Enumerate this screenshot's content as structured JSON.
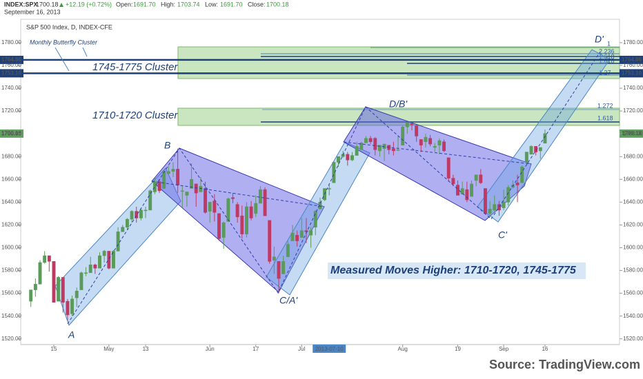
{
  "header": {
    "symbol": "INDEX:SPX",
    "price": "1700.18",
    "change": "+12.19 (+0.72%)",
    "open_label": "Open:",
    "open": "1691.70",
    "high_label": "High:",
    "high": "1703.74",
    "low_label": "Low:",
    "low": "1691.70",
    "close_label": "Close:",
    "close": "1700.18",
    "date": "September 16, 2013"
  },
  "chart_data": {
    "type": "candlestick",
    "title": "S&P 500 Index, D, INDEX-CFE",
    "categories": [
      null,
      null,
      null,
      null,
      null,
      "15",
      null,
      null,
      null,
      null,
      null,
      null,
      null,
      null,
      null,
      null,
      null,
      "May",
      null,
      null,
      null,
      null,
      null,
      null,
      null,
      "13",
      null,
      null,
      null,
      null,
      null,
      null,
      null,
      null,
      null,
      null,
      null,
      null,
      null,
      "Jun",
      null,
      null,
      null,
      null,
      null,
      null,
      null,
      null,
      null,
      "17",
      null,
      null,
      null,
      null,
      null,
      null,
      null,
      null,
      null,
      "Jul",
      null,
      null,
      null,
      null,
      null,
      "2013-07-10",
      null,
      null,
      null,
      null,
      null,
      null,
      null,
      null,
      null,
      null,
      null,
      null,
      null,
      null,
      null,
      "Aug",
      null,
      null,
      null,
      null,
      null,
      null,
      null,
      null,
      null,
      null,
      null,
      "19",
      null,
      null,
      null,
      null,
      null,
      null,
      null,
      null,
      null,
      "Sep",
      null,
      null,
      null,
      null,
      null,
      null,
      null,
      null,
      "16"
    ],
    "candles": [
      [
        1553,
        1563,
        1548,
        1563
      ],
      [
        1563,
        1573,
        1557,
        1568
      ],
      [
        1568,
        1589,
        1568,
        1587
      ],
      [
        1587,
        1597,
        1586,
        1593
      ],
      [
        1593,
        1593,
        1579,
        1588
      ],
      [
        1588,
        1588,
        1552,
        1552
      ],
      [
        1553,
        1575,
        1553,
        1574
      ],
      [
        1574,
        1574,
        1543,
        1552
      ],
      [
        1553,
        1555,
        1536,
        1541
      ],
      [
        1542,
        1558,
        1540,
        1555
      ],
      [
        1556,
        1565,
        1548,
        1562
      ],
      [
        1563,
        1579,
        1563,
        1578
      ],
      [
        1578,
        1583,
        1575,
        1578
      ],
      [
        1578,
        1592,
        1578,
        1585
      ],
      [
        1585,
        1586,
        1577,
        1582
      ],
      [
        1582,
        1596,
        1582,
        1593
      ],
      [
        1593,
        1598,
        1587,
        1597
      ],
      [
        1597,
        1597,
        1581,
        1582
      ],
      [
        1582,
        1598,
        1582,
        1597
      ],
      [
        1597,
        1618,
        1597,
        1614
      ],
      [
        1614,
        1620,
        1614,
        1618
      ],
      [
        1618,
        1626,
        1616,
        1625
      ],
      [
        1625,
        1633,
        1622,
        1632
      ],
      [
        1632,
        1636,
        1622,
        1626
      ],
      [
        1626,
        1634,
        1624,
        1633
      ],
      [
        1633,
        1636,
        1626,
        1633
      ],
      [
        1633,
        1651,
        1633,
        1650
      ],
      [
        1649,
        1661,
        1647,
        1658
      ],
      [
        1658,
        1660,
        1648,
        1650
      ],
      [
        1652,
        1668,
        1652,
        1667
      ],
      [
        1665,
        1672,
        1665,
        1667
      ],
      [
        1667,
        1675,
        1662,
        1669
      ],
      [
        1669,
        1687,
        1648,
        1655
      ],
      [
        1650,
        1654,
        1635,
        1650
      ],
      [
        1646,
        1649,
        1636,
        1649
      ],
      [
        1652,
        1674,
        1652,
        1660
      ],
      [
        1656,
        1656,
        1636,
        1648
      ],
      [
        1649,
        1662,
        1649,
        1654
      ],
      [
        1652,
        1658,
        1630,
        1631
      ],
      [
        1632,
        1640,
        1622,
        1640
      ],
      [
        1641,
        1647,
        1623,
        1631
      ],
      [
        1630,
        1630,
        1606,
        1608
      ],
      [
        1609,
        1623,
        1599,
        1622
      ],
      [
        1623,
        1644,
        1623,
        1643
      ],
      [
        1644,
        1648,
        1639,
        1643
      ],
      [
        1638,
        1640,
        1622,
        1627
      ],
      [
        1628,
        1637,
        1608,
        1612
      ],
      [
        1612,
        1640,
        1609,
        1636
      ],
      [
        1636,
        1641,
        1624,
        1626
      ],
      [
        1630,
        1646,
        1627,
        1639
      ],
      [
        1639,
        1654,
        1639,
        1651
      ],
      [
        1651,
        1653,
        1628,
        1628
      ],
      [
        1624,
        1624,
        1586,
        1588
      ],
      [
        1589,
        1601,
        1577,
        1592
      ],
      [
        1588,
        1588,
        1560,
        1573
      ],
      [
        1577,
        1593,
        1577,
        1588
      ],
      [
        1592,
        1606,
        1592,
        1603
      ],
      [
        1606,
        1620,
        1606,
        1613
      ],
      [
        1611,
        1615,
        1601,
        1606
      ],
      [
        1609,
        1626,
        1609,
        1615
      ],
      [
        1615,
        1626,
        1604,
        1614
      ],
      [
        1611,
        1618,
        1600,
        1615
      ],
      [
        1618,
        1633,
        1611,
        1632
      ],
      [
        1634,
        1644,
        1634,
        1640
      ],
      [
        1642,
        1652,
        1641,
        1652
      ],
      [
        1652,
        1655,
        1646,
        1652
      ],
      [
        1657,
        1676,
        1657,
        1675
      ],
      [
        1675,
        1680,
        1671,
        1680
      ],
      [
        1680,
        1685,
        1679,
        1682
      ],
      [
        1682,
        1684,
        1672,
        1677
      ],
      [
        1677,
        1684,
        1676,
        1681
      ],
      [
        1681,
        1693,
        1681,
        1689
      ],
      [
        1686,
        1693,
        1686,
        1692
      ],
      [
        1692,
        1698,
        1692,
        1696
      ],
      [
        1696,
        1698,
        1691,
        1693
      ],
      [
        1696,
        1697,
        1681,
        1686
      ],
      [
        1685,
        1690,
        1680,
        1690
      ],
      [
        1687,
        1691,
        1676,
        1691
      ],
      [
        1690,
        1690,
        1682,
        1686
      ],
      [
        1687,
        1693,
        1681,
        1685
      ],
      [
        1686,
        1698,
        1685,
        1686
      ],
      [
        1690,
        1707,
        1690,
        1706
      ],
      [
        1706,
        1710,
        1700,
        1710
      ],
      [
        1709,
        1709,
        1703,
        1708
      ],
      [
        1707,
        1708,
        1693,
        1698
      ],
      [
        1695,
        1695,
        1684,
        1690
      ],
      [
        1693,
        1700,
        1688,
        1697
      ],
      [
        1696,
        1699,
        1689,
        1691
      ],
      [
        1688,
        1692,
        1684,
        1689
      ],
      [
        1690,
        1696,
        1682,
        1694
      ],
      [
        1693,
        1695,
        1684,
        1685
      ],
      [
        1679,
        1679,
        1658,
        1661
      ],
      [
        1661,
        1664,
        1654,
        1656
      ],
      [
        1655,
        1659,
        1646,
        1646
      ],
      [
        1647,
        1658,
        1647,
        1652
      ],
      [
        1651,
        1658,
        1640,
        1642
      ],
      [
        1645,
        1659,
        1645,
        1656
      ],
      [
        1659,
        1664,
        1654,
        1664
      ],
      [
        1664,
        1669,
        1656,
        1657
      ],
      [
        1652,
        1652,
        1629,
        1630
      ],
      [
        1630,
        1641,
        1628,
        1634
      ],
      [
        1633,
        1646,
        1632,
        1638
      ],
      [
        1638,
        1641,
        1628,
        1633
      ],
      [
        1635,
        1651,
        1633,
        1640
      ],
      [
        1640,
        1655,
        1637,
        1653
      ],
      [
        1653,
        1659,
        1652,
        1655
      ],
      [
        1657,
        1664,
        1640,
        1655
      ],
      [
        1657,
        1672,
        1657,
        1671
      ],
      [
        1675,
        1684,
        1675,
        1684
      ],
      [
        1682,
        1690,
        1682,
        1689
      ],
      [
        1689,
        1689,
        1681,
        1684
      ],
      [
        1685,
        1688,
        1678,
        1688
      ],
      [
        1691.7,
        1703.74,
        1691.7,
        1700.18
      ]
    ],
    "up_color": "#5a9a5a",
    "down_color": "#bf3a63",
    "ylim": [
      1515,
      1800.5
    ],
    "yticks": [
      {
        "value": 1520,
        "label": "1520.00"
      },
      {
        "value": 1540,
        "label": "1540.00"
      },
      {
        "value": 1560,
        "label": "1560.00"
      },
      {
        "value": 1580,
        "label": "1580.00"
      },
      {
        "value": 1600,
        "label": "1600.00"
      },
      {
        "value": 1620,
        "label": "1620.00"
      },
      {
        "value": 1640,
        "label": "1640.00"
      },
      {
        "value": 1660,
        "label": "1660.00"
      },
      {
        "value": 1680,
        "label": "1680.00"
      },
      {
        "value": 1700,
        "label": "1700.00"
      },
      {
        "value": 1720,
        "label": "1720.00"
      },
      {
        "value": 1740,
        "label": "1740.00"
      },
      {
        "value": 1760,
        "label": "1760.00"
      },
      {
        "value": 1780,
        "label": "1780.00"
      }
    ],
    "price_lines": [
      {
        "value": 1764.86,
        "color": "#1d3f7a",
        "line": true
      },
      {
        "value": 1753.1,
        "label": "1753.10",
        "color": "#1d3f7a",
        "line": true
      },
      {
        "value": 1700.18,
        "color": "#5f9f5f",
        "line": false
      }
    ],
    "annotations": {
      "monthly": "Monthly Butterfly Cluster",
      "cluster_high": "1745-1775 Cluster",
      "cluster_low": "1710-1720 Cluster",
      "measured": "Measured Moves Higher: 1710-1720, 1745-1775",
      "points": [
        "A",
        "B",
        "C/A'",
        "D/B'",
        "C'",
        "D'"
      ],
      "fib_high": [
        "1",
        "2.236",
        "1.618",
        "1.618",
        "1.27"
      ],
      "fib_low": [
        "1.272",
        "1.618"
      ]
    },
    "source": "Source: TradingView.com"
  }
}
